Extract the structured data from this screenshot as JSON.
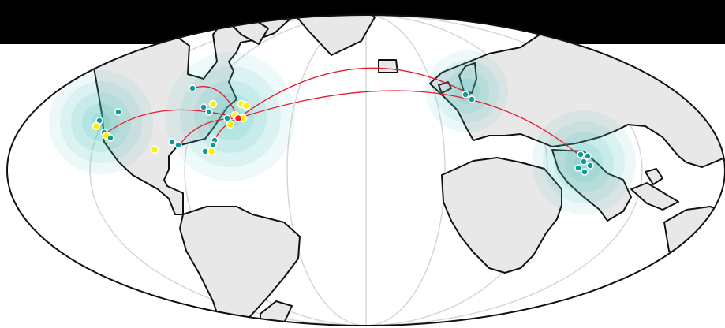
{
  "map": {
    "projection": "mollweide",
    "colors": {
      "land": "#e8e8e8",
      "coast": "#111111",
      "graticule": "#d6d6d6",
      "halo": "#46c2bd",
      "teal_point": "#0e9a94",
      "yellow_point": "#ffee00",
      "hub_point": "#ff1a1a",
      "connection": "#e8192c",
      "header": "#000000"
    },
    "clusters": [
      {
        "id": "north-america-west"
      },
      {
        "id": "north-america-east"
      },
      {
        "id": "europe-north"
      },
      {
        "id": "australia-east"
      }
    ],
    "hub": "north-america-east",
    "connections": [
      {
        "from": "north-america-east",
        "to": "north-america-west"
      },
      {
        "from": "north-america-east",
        "to": "europe-north"
      },
      {
        "from": "north-america-east",
        "to": "australia-east"
      },
      {
        "from": "north-america-east",
        "to": "north-america-midwest"
      },
      {
        "from": "north-america-east",
        "to": "north-america-south"
      }
    ],
    "point_types": [
      "teal",
      "yellow",
      "hub"
    ]
  }
}
